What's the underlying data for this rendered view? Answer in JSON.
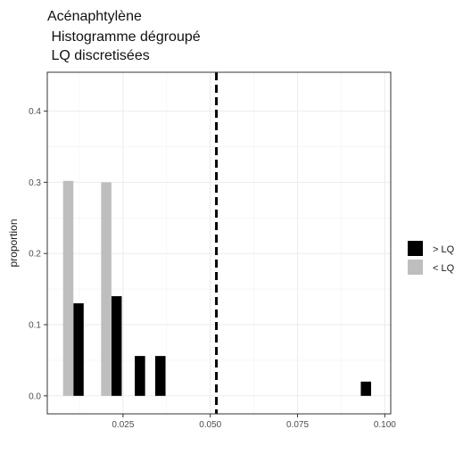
{
  "chart_data": {
    "type": "bar",
    "title_lines": [
      "Acénaphtylène",
      " Histogramme dégroupé",
      " LQ discretisées"
    ],
    "xlabel": "",
    "ylabel": "proportion",
    "xlim": [
      0.0033,
      0.1017
    ],
    "ylim": [
      -0.0253,
      0.4546
    ],
    "xticks": [
      0.025,
      0.05,
      0.075,
      0.1
    ],
    "xtick_labels": [
      "0.025",
      "0.050",
      "0.075",
      "0.100"
    ],
    "yticks": [
      0.0,
      0.1,
      0.2,
      0.3,
      0.4
    ],
    "ytick_labels": [
      "0.0",
      "0.1",
      "0.2",
      "0.3",
      "0.4"
    ],
    "grid": true,
    "legend_position": "right",
    "bar_width": 0.00295,
    "series": [
      {
        "name": "> LQ",
        "color": "#000000",
        "points": [
          {
            "x": 0.01225,
            "y": 0.13
          },
          {
            "x": 0.02315,
            "y": 0.14
          },
          {
            "x": 0.02985,
            "y": 0.056
          },
          {
            "x": 0.0357,
            "y": 0.056
          },
          {
            "x": 0.0946,
            "y": 0.02
          }
        ]
      },
      {
        "name": "< LQ",
        "color": "#bebebe",
        "points": [
          {
            "x": 0.0093,
            "y": 0.302
          },
          {
            "x": 0.0202,
            "y": 0.3
          }
        ]
      }
    ],
    "vline": {
      "x": 0.05175,
      "style": "dashed",
      "color": "#000000"
    }
  }
}
